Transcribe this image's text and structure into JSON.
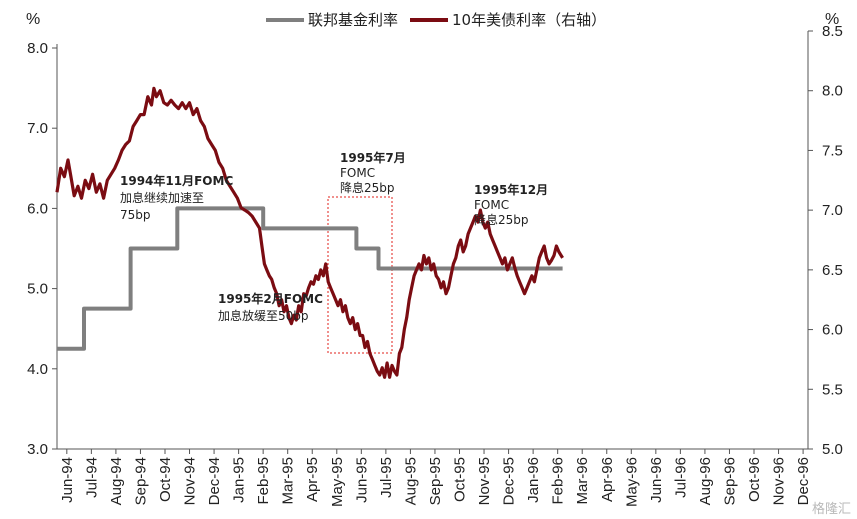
{
  "chart_data": {
    "type": "line",
    "y_left_unit": "%",
    "y_right_unit": "%",
    "y_left_ticks": [
      "3.0",
      "4.0",
      "5.0",
      "6.0",
      "7.0",
      "8.0"
    ],
    "y_right_ticks": [
      "5.0",
      "5.5",
      "6.0",
      "6.5",
      "7.0",
      "7.5",
      "8.0",
      "8.5"
    ],
    "ylim_left": [
      3.0,
      8.0
    ],
    "ylim_right": [
      5.0,
      8.5
    ],
    "x_ticks": [
      "Jun-94",
      "Jul-94",
      "Aug-94",
      "Sep-94",
      "Oct-94",
      "Nov-94",
      "Dec-94",
      "Jan-95",
      "Feb-95",
      "Mar-95",
      "Apr-95",
      "May-95",
      "Jun-95",
      "Jul-95",
      "Aug-95",
      "Sep-95",
      "Oct-95",
      "Nov-95",
      "Dec-95",
      "Jan-96",
      "Feb-96",
      "Mar-96",
      "Apr-96",
      "May-96",
      "Jun-96",
      "Jul-96",
      "Aug-96",
      "Sep-96",
      "Oct-96",
      "Nov-96",
      "Dec-96"
    ],
    "series": [
      {
        "name": "联邦基金利率",
        "axis": "left",
        "color": "#7f7f7f",
        "step": true,
        "points": [
          [
            0,
            4.25
          ],
          [
            1.1,
            4.25
          ],
          [
            1.1,
            4.75
          ],
          [
            3.0,
            4.75
          ],
          [
            3.0,
            5.5
          ],
          [
            4.9,
            5.5
          ],
          [
            4.9,
            6.0
          ],
          [
            8.4,
            6.0
          ],
          [
            8.4,
            5.75
          ],
          [
            12.2,
            5.75
          ],
          [
            12.2,
            5.5
          ],
          [
            13.1,
            5.5
          ],
          [
            13.1,
            5.25
          ],
          [
            20.6,
            5.25
          ]
        ]
      },
      {
        "name": "10年美债利率（右轴）",
        "axis": "right",
        "color": "#7b0c12",
        "step": false,
        "points": [
          [
            0.0,
            7.15
          ],
          [
            0.15,
            7.35
          ],
          [
            0.3,
            7.28
          ],
          [
            0.45,
            7.42
          ],
          [
            0.55,
            7.3
          ],
          [
            0.7,
            7.12
          ],
          [
            0.85,
            7.2
          ],
          [
            1.0,
            7.1
          ],
          [
            1.15,
            7.25
          ],
          [
            1.3,
            7.18
          ],
          [
            1.45,
            7.3
          ],
          [
            1.6,
            7.15
          ],
          [
            1.75,
            7.22
          ],
          [
            1.9,
            7.1
          ],
          [
            2.05,
            7.25
          ],
          [
            2.2,
            7.3
          ],
          [
            2.35,
            7.35
          ],
          [
            2.5,
            7.42
          ],
          [
            2.65,
            7.5
          ],
          [
            2.8,
            7.55
          ],
          [
            2.95,
            7.58
          ],
          [
            3.1,
            7.7
          ],
          [
            3.25,
            7.75
          ],
          [
            3.4,
            7.8
          ],
          [
            3.55,
            7.8
          ],
          [
            3.7,
            7.95
          ],
          [
            3.85,
            7.88
          ],
          [
            3.95,
            8.02
          ],
          [
            4.05,
            7.95
          ],
          [
            4.2,
            8.0
          ],
          [
            4.35,
            7.9
          ],
          [
            4.5,
            7.88
          ],
          [
            4.65,
            7.92
          ],
          [
            4.8,
            7.88
          ],
          [
            4.95,
            7.85
          ],
          [
            5.1,
            7.9
          ],
          [
            5.25,
            7.85
          ],
          [
            5.4,
            7.9
          ],
          [
            5.55,
            7.8
          ],
          [
            5.7,
            7.85
          ],
          [
            5.85,
            7.75
          ],
          [
            6.0,
            7.7
          ],
          [
            6.15,
            7.6
          ],
          [
            6.3,
            7.55
          ],
          [
            6.45,
            7.5
          ],
          [
            6.6,
            7.4
          ],
          [
            6.75,
            7.35
          ],
          [
            6.9,
            7.25
          ],
          [
            7.05,
            7.2
          ],
          [
            7.2,
            7.15
          ],
          [
            7.35,
            7.1
          ],
          [
            7.5,
            7.02
          ],
          [
            7.65,
            7.0
          ],
          [
            7.8,
            6.98
          ],
          [
            7.95,
            6.95
          ],
          [
            8.1,
            6.9
          ],
          [
            8.25,
            6.85
          ],
          [
            8.35,
            6.7
          ],
          [
            8.45,
            6.55
          ],
          [
            8.55,
            6.5
          ],
          [
            8.65,
            6.45
          ],
          [
            8.75,
            6.42
          ],
          [
            8.85,
            6.35
          ],
          [
            8.95,
            6.3
          ],
          [
            9.05,
            6.2
          ],
          [
            9.15,
            6.25
          ],
          [
            9.25,
            6.15
          ],
          [
            9.35,
            6.2
          ],
          [
            9.45,
            6.1
          ],
          [
            9.55,
            6.05
          ],
          [
            9.65,
            6.12
          ],
          [
            9.75,
            6.08
          ],
          [
            9.85,
            6.2
          ],
          [
            9.95,
            6.15
          ],
          [
            10.05,
            6.3
          ],
          [
            10.15,
            6.28
          ],
          [
            10.25,
            6.35
          ],
          [
            10.35,
            6.4
          ],
          [
            10.45,
            6.38
          ],
          [
            10.55,
            6.45
          ],
          [
            10.65,
            6.42
          ],
          [
            10.75,
            6.5
          ],
          [
            10.85,
            6.45
          ],
          [
            10.95,
            6.55
          ],
          [
            11.05,
            6.4
          ],
          [
            11.15,
            6.35
          ],
          [
            11.25,
            6.3
          ],
          [
            11.35,
            6.25
          ],
          [
            11.45,
            6.2
          ],
          [
            11.55,
            6.25
          ],
          [
            11.65,
            6.15
          ],
          [
            11.75,
            6.2
          ],
          [
            11.85,
            6.1
          ],
          [
            11.95,
            6.05
          ],
          [
            12.05,
            6.1
          ],
          [
            12.15,
            6.0
          ],
          [
            12.25,
            6.05
          ],
          [
            12.35,
            5.95
          ],
          [
            12.45,
            5.95
          ],
          [
            12.55,
            5.85
          ],
          [
            12.65,
            5.9
          ],
          [
            12.75,
            5.8
          ],
          [
            12.85,
            5.75
          ],
          [
            12.95,
            5.7
          ],
          [
            13.05,
            5.65
          ],
          [
            13.15,
            5.62
          ],
          [
            13.25,
            5.68
          ],
          [
            13.35,
            5.6
          ],
          [
            13.45,
            5.72
          ],
          [
            13.55,
            5.6
          ],
          [
            13.65,
            5.7
          ],
          [
            13.75,
            5.65
          ],
          [
            13.85,
            5.62
          ],
          [
            13.95,
            5.8
          ],
          [
            14.05,
            5.85
          ],
          [
            14.15,
            6.0
          ],
          [
            14.25,
            6.1
          ],
          [
            14.35,
            6.25
          ],
          [
            14.45,
            6.35
          ],
          [
            14.55,
            6.45
          ],
          [
            14.65,
            6.5
          ],
          [
            14.75,
            6.55
          ],
          [
            14.85,
            6.5
          ],
          [
            14.95,
            6.62
          ],
          [
            15.05,
            6.55
          ],
          [
            15.15,
            6.6
          ],
          [
            15.25,
            6.5
          ],
          [
            15.35,
            6.55
          ],
          [
            15.45,
            6.45
          ],
          [
            15.55,
            6.42
          ],
          [
            15.65,
            6.35
          ],
          [
            15.75,
            6.4
          ],
          [
            15.85,
            6.3
          ],
          [
            15.95,
            6.35
          ],
          [
            16.05,
            6.45
          ],
          [
            16.15,
            6.55
          ],
          [
            16.25,
            6.6
          ],
          [
            16.35,
            6.7
          ],
          [
            16.45,
            6.75
          ],
          [
            16.55,
            6.65
          ],
          [
            16.65,
            6.7
          ],
          [
            16.75,
            6.8
          ],
          [
            16.85,
            6.85
          ],
          [
            16.95,
            6.9
          ],
          [
            17.05,
            6.95
          ],
          [
            17.15,
            6.9
          ],
          [
            17.25,
            7.0
          ],
          [
            17.35,
            6.9
          ],
          [
            17.45,
            6.85
          ],
          [
            17.55,
            6.9
          ],
          [
            17.65,
            6.8
          ],
          [
            17.75,
            6.75
          ],
          [
            17.85,
            6.7
          ],
          [
            17.95,
            6.65
          ],
          [
            18.05,
            6.6
          ],
          [
            18.15,
            6.55
          ],
          [
            18.25,
            6.6
          ],
          [
            18.35,
            6.5
          ],
          [
            18.45,
            6.55
          ],
          [
            18.55,
            6.6
          ],
          [
            18.65,
            6.52
          ],
          [
            18.75,
            6.45
          ],
          [
            18.85,
            6.4
          ],
          [
            18.95,
            6.35
          ],
          [
            19.05,
            6.3
          ],
          [
            19.15,
            6.35
          ],
          [
            19.25,
            6.4
          ],
          [
            19.35,
            6.45
          ],
          [
            19.45,
            6.4
          ],
          [
            19.55,
            6.5
          ],
          [
            19.65,
            6.6
          ],
          [
            19.75,
            6.65
          ],
          [
            19.85,
            6.7
          ],
          [
            19.95,
            6.6
          ],
          [
            20.05,
            6.55
          ],
          [
            20.15,
            6.58
          ],
          [
            20.25,
            6.62
          ],
          [
            20.35,
            6.7
          ],
          [
            20.45,
            6.65
          ],
          [
            20.6,
            6.6
          ]
        ]
      }
    ],
    "annotations": [
      {
        "lines": [
          "1994年11月FOMC",
          "加息继续加速至",
          "75bp"
        ]
      },
      {
        "lines": [
          "1995年2月FOMC",
          "加息放缓至50bp"
        ]
      },
      {
        "lines": [
          "1995年7月",
          "FOMC",
          "降息25bp"
        ]
      },
      {
        "lines": [
          "1995年12月",
          "FOMC",
          "降息25bp"
        ]
      }
    ],
    "legend_position": "top"
  },
  "watermark": "格隆汇"
}
